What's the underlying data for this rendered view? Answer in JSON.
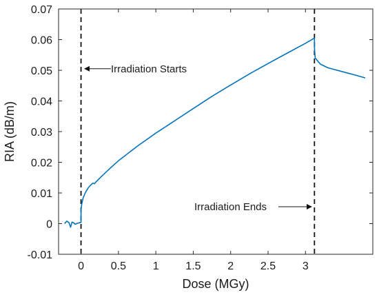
{
  "chart_data": {
    "type": "line",
    "title": "",
    "xlabel": "Dose (MGy)",
    "ylabel": "RIA (dB/m)",
    "xlim": [
      -0.3,
      3.9
    ],
    "ylim": [
      -0.01,
      0.07
    ],
    "x_ticks": [
      0,
      0.5,
      1,
      1.5,
      2,
      2.5,
      3
    ],
    "x_tick_labels": [
      "0",
      "0.5",
      "1",
      "1.5",
      "2",
      "2.5",
      "3"
    ],
    "y_ticks": [
      -0.01,
      0,
      0.01,
      0.02,
      0.03,
      0.04,
      0.05,
      0.06,
      0.07
    ],
    "y_tick_labels": [
      "-0.01",
      "0",
      "0.01",
      "0.02",
      "0.03",
      "0.04",
      "0.05",
      "0.06",
      "0.07"
    ],
    "grid": false,
    "line_color": "#0072bd",
    "series": [
      {
        "x": [
          -0.22,
          -0.19,
          -0.16,
          -0.14,
          -0.12,
          -0.1,
          -0.08,
          -0.05,
          -0.02,
          0.0,
          0.0,
          0.01,
          0.03,
          0.06,
          0.1,
          0.14,
          0.16,
          0.18,
          0.2,
          0.25,
          0.3,
          0.4,
          0.5,
          0.75,
          1.0,
          1.25,
          1.5,
          1.75,
          2.0,
          2.25,
          2.5,
          2.75,
          3.0,
          3.12,
          3.12,
          3.13,
          3.2,
          3.3,
          3.5,
          3.7,
          3.8
        ],
        "y": [
          0.0,
          0.0008,
          0.0003,
          -0.0012,
          0.0005,
          0.0003,
          -0.0002,
          0.0001,
          0.0003,
          0.0004,
          0.0045,
          0.0065,
          0.0085,
          0.0102,
          0.0118,
          0.0128,
          0.0132,
          0.013,
          0.0136,
          0.0148,
          0.016,
          0.0183,
          0.0205,
          0.0252,
          0.0295,
          0.0335,
          0.0375,
          0.0415,
          0.0452,
          0.0488,
          0.0522,
          0.0555,
          0.0588,
          0.0605,
          0.0575,
          0.054,
          0.052,
          0.0508,
          0.0495,
          0.0482,
          0.0475
        ]
      }
    ],
    "vlines": [
      {
        "x": 0,
        "style": "dashed"
      },
      {
        "x": 3.12,
        "style": "dashed"
      }
    ],
    "annotations": [
      {
        "text": "Irradiation Starts",
        "arrow_to": {
          "x": 0.05,
          "y": 0.0505
        }
      },
      {
        "text": "Irradiation Ends",
        "arrow_to": {
          "x": 3.08,
          "y": 0.0055
        }
      }
    ]
  }
}
